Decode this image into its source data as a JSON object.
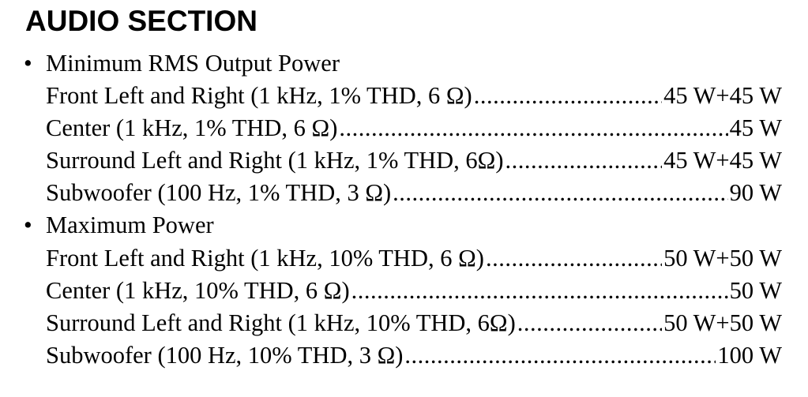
{
  "title": "AUDIO SECTION",
  "sections": [
    {
      "bullet": "•",
      "heading": "Minimum RMS Output Power",
      "items": [
        {
          "label": "Front Left and Right (1 kHz, 1% THD, 6 Ω)",
          "value": "45 W+45 W"
        },
        {
          "label": "Center (1 kHz, 1% THD, 6 Ω)",
          "value": "45 W"
        },
        {
          "label": "Surround Left and Right (1 kHz, 1% THD, 6Ω)",
          "value": "45 W+45 W"
        },
        {
          "label": "Subwoofer (100 Hz, 1% THD, 3 Ω)",
          "value": "90 W"
        }
      ]
    },
    {
      "bullet": "•",
      "heading": "Maximum Power",
      "items": [
        {
          "label": "Front Left and Right (1 kHz, 10% THD, 6 Ω)",
          "value": "50 W+50 W"
        },
        {
          "label": "Center (1 kHz, 10% THD, 6 Ω)",
          "value": "50 W"
        },
        {
          "label": "Surround Left and Right (1 kHz, 10% THD, 6Ω)",
          "value": "50 W+50 W"
        },
        {
          "label": "Subwoofer (100 Hz, 10% THD, 3 Ω)",
          "value": "100 W"
        }
      ]
    }
  ]
}
